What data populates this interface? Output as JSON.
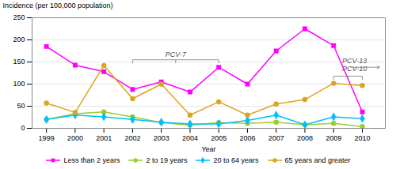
{
  "chart_data": {
    "type": "line",
    "xlabel": "Year",
    "ylabel": "Incidence (per 100,000 population)",
    "x": [
      1999,
      2000,
      2001,
      2002,
      2003,
      2004,
      2005,
      2006,
      2007,
      2008,
      2009,
      2010
    ],
    "xlim": [
      1998.5,
      2010.8
    ],
    "xticks": [
      1999,
      2000,
      2001,
      2002,
      2003,
      2004,
      2005,
      2006,
      2007,
      2008,
      2009,
      2010
    ],
    "ylim": [
      0,
      250
    ],
    "yticks": [
      0,
      50,
      100,
      150,
      200,
      250
    ],
    "grid": true,
    "legend": "bottom",
    "series": [
      {
        "name": "Less than 2 years",
        "color": "#FF00FF",
        "marker": "square",
        "values": [
          185,
          143,
          128,
          88,
          105,
          82,
          138,
          100,
          175,
          225,
          187,
          37
        ]
      },
      {
        "name": "2 to 19 years",
        "color": "#9ACD32",
        "marker": "circle",
        "values": [
          20,
          33,
          37,
          26,
          13,
          7,
          13,
          11,
          14,
          8,
          11,
          4
        ]
      },
      {
        "name": "20 to 64 years",
        "color": "#00BFFF",
        "marker": "diamond",
        "values": [
          20,
          30,
          26,
          20,
          14,
          10,
          10,
          18,
          30,
          8,
          26,
          22
        ]
      },
      {
        "name": "65 years and greater",
        "color": "#DAA520",
        "marker": "circle",
        "values": [
          57,
          36,
          142,
          67,
          100,
          30,
          60,
          30,
          55,
          65,
          102,
          97
        ]
      }
    ],
    "annotations": [
      {
        "text": "PCV-7",
        "x": 2003.5,
        "y": 152,
        "bracket": [
          2002,
          2005
        ],
        "bracket_y": 155
      },
      {
        "text": "PCV-10",
        "x": 2009.3,
        "y": 120,
        "bracket": [
          2009,
          2010
        ],
        "bracket_y": 118
      },
      {
        "text": "PCV-13",
        "x": 2009.3,
        "y": 138,
        "arrow": [
          2009.6,
          2010.6
        ]
      }
    ]
  }
}
